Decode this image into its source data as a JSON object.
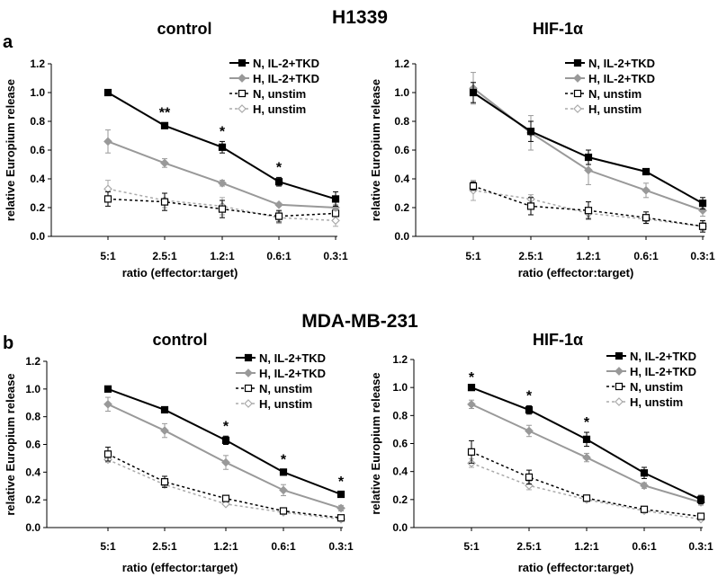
{
  "figure": {
    "row_a": {
      "letter": "a",
      "title": "H1339"
    },
    "row_b": {
      "letter": "b",
      "title": "MDA-MB-231"
    }
  },
  "colors": {
    "N_stim": "#000000",
    "H_stim": "#999999",
    "N_unstim": "#000000",
    "H_unstim": "#aaaaaa"
  },
  "chart_data": [
    {
      "type": "line",
      "title": "control",
      "row": "a",
      "xlabel": "ratio (effector:target)",
      "ylabel": "relative Europium release",
      "categories": [
        "5:1",
        "2.5:1",
        "1.2:1",
        "0.6:1",
        "0.3:1"
      ],
      "ylim": [
        0,
        1.2
      ],
      "yticks": [
        "0.0",
        "0.2",
        "0.4",
        "0.6",
        "0.8",
        "1.0",
        "1.2"
      ],
      "legend": "top-right",
      "series": [
        {
          "name": "N, IL-2+TKD",
          "values": [
            1.0,
            0.77,
            0.62,
            0.38,
            0.26
          ],
          "err": [
            0.0,
            0.02,
            0.04,
            0.03,
            0.05
          ]
        },
        {
          "name": "H, IL-2+TKD",
          "values": [
            0.66,
            0.51,
            0.37,
            0.22,
            0.2
          ],
          "err": [
            0.08,
            0.03,
            0.02,
            0.01,
            0.02
          ]
        },
        {
          "name": "N, unstim",
          "values": [
            0.26,
            0.24,
            0.19,
            0.14,
            0.16
          ],
          "err": [
            0.05,
            0.06,
            0.06,
            0.04,
            0.02
          ]
        },
        {
          "name": "H, unstim",
          "values": [
            0.33,
            0.25,
            0.21,
            0.13,
            0.11
          ],
          "err": [
            0.06,
            0.05,
            0.06,
            0.04,
            0.04
          ]
        }
      ],
      "significance": [
        "",
        "**",
        "*",
        "*",
        ""
      ]
    },
    {
      "type": "line",
      "title": "HIF-1α",
      "row": "a",
      "xlabel": "ratio (effector:target)",
      "ylabel": "relative Europium release",
      "categories": [
        "5:1",
        "2.5:1",
        "1.2:1",
        "0.6:1",
        "0.3:1"
      ],
      "ylim": [
        0,
        1.2
      ],
      "yticks": [
        "0.0",
        "0.2",
        "0.4",
        "0.6",
        "0.8",
        "1.0",
        "1.2"
      ],
      "legend": "top-right",
      "series": [
        {
          "name": "N, IL-2+TKD",
          "values": [
            1.0,
            0.73,
            0.55,
            0.45,
            0.23
          ],
          "err": [
            0.07,
            0.07,
            0.05,
            0.01,
            0.04
          ]
        },
        {
          "name": "H, IL-2+TKD",
          "values": [
            1.03,
            0.72,
            0.46,
            0.32,
            0.18
          ],
          "err": [
            0.11,
            0.12,
            0.1,
            0.05,
            0.04
          ]
        },
        {
          "name": "N, unstim",
          "values": [
            0.35,
            0.21,
            0.18,
            0.13,
            0.07
          ],
          "err": [
            0.03,
            0.06,
            0.06,
            0.04,
            0.04
          ]
        },
        {
          "name": "H, unstim",
          "values": [
            0.32,
            0.26,
            0.16,
            0.12,
            0.07
          ],
          "err": [
            0.07,
            0.03,
            0.03,
            0.03,
            0.03
          ]
        }
      ],
      "significance": [
        "",
        "",
        "",
        "",
        ""
      ]
    },
    {
      "type": "line",
      "title": "control",
      "row": "b",
      "xlabel": "ratio (effector:target)",
      "ylabel": "relative Europium release",
      "categories": [
        "5:1",
        "2.5:1",
        "1.2:1",
        "0.6:1",
        "0.3:1"
      ],
      "ylim": [
        0,
        1.2
      ],
      "yticks": [
        "0.0",
        "0.2",
        "0.4",
        "0.6",
        "0.8",
        "1.0",
        "1.2"
      ],
      "legend": "top-right",
      "series": [
        {
          "name": "N, IL-2+TKD",
          "values": [
            1.0,
            0.85,
            0.63,
            0.4,
            0.24
          ],
          "err": [
            0.0,
            0.02,
            0.03,
            0.02,
            0.02
          ]
        },
        {
          "name": "H, IL-2+TKD",
          "values": [
            0.89,
            0.7,
            0.47,
            0.27,
            0.14
          ],
          "err": [
            0.05,
            0.05,
            0.05,
            0.04,
            0.02
          ]
        },
        {
          "name": "N, unstim",
          "values": [
            0.53,
            0.33,
            0.21,
            0.12,
            0.07
          ],
          "err": [
            0.05,
            0.04,
            0.02,
            0.01,
            0.01
          ]
        },
        {
          "name": "H, unstim",
          "values": [
            0.49,
            0.31,
            0.17,
            0.11,
            0.06
          ],
          "err": [
            0.02,
            0.02,
            0.01,
            0.01,
            0.01
          ]
        }
      ],
      "significance": [
        "",
        "",
        "*",
        "*",
        "*"
      ]
    },
    {
      "type": "line",
      "title": "HIF-1α",
      "row": "b",
      "xlabel": "ratio (effector:target)",
      "ylabel": "relative Europium release",
      "categories": [
        "5:1",
        "2.5:1",
        "1.2:1",
        "0.6:1",
        "0.3:1"
      ],
      "ylim": [
        0,
        1.2
      ],
      "yticks": [
        "0.0",
        "0.2",
        "0.4",
        "0.6",
        "0.8",
        "1.0",
        "1.2"
      ],
      "legend": "top-right",
      "series": [
        {
          "name": "N, IL-2+TKD",
          "values": [
            1.0,
            0.84,
            0.63,
            0.39,
            0.2
          ],
          "err": [
            0.0,
            0.03,
            0.05,
            0.04,
            0.03
          ]
        },
        {
          "name": "H, IL-2+TKD",
          "values": [
            0.88,
            0.69,
            0.5,
            0.3,
            0.18
          ],
          "err": [
            0.03,
            0.04,
            0.03,
            0.02,
            0.02
          ]
        },
        {
          "name": "N, unstim",
          "values": [
            0.54,
            0.36,
            0.21,
            0.13,
            0.08
          ],
          "err": [
            0.08,
            0.05,
            0.02,
            0.01,
            0.01
          ]
        },
        {
          "name": "H, unstim",
          "values": [
            0.46,
            0.3,
            0.2,
            0.12,
            0.06
          ],
          "err": [
            0.03,
            0.03,
            0.01,
            0.01,
            0.01
          ]
        }
      ],
      "significance": [
        "*",
        "*",
        "*",
        "",
        ""
      ]
    }
  ]
}
